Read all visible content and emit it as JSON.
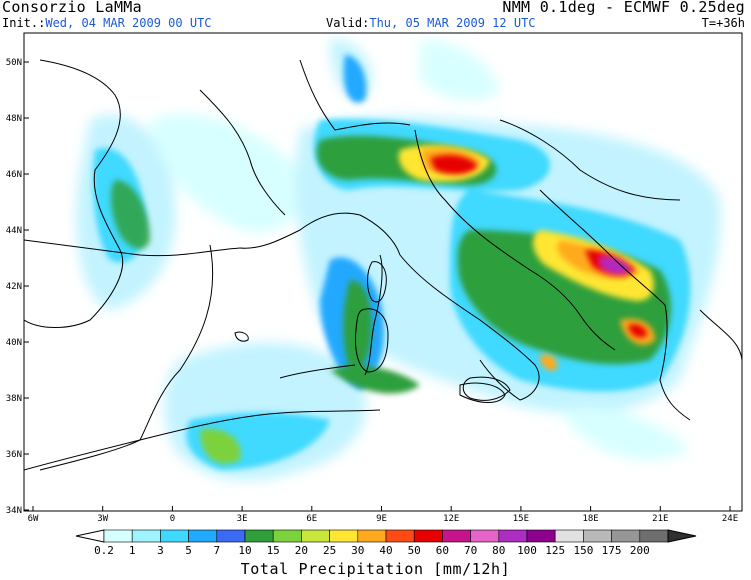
{
  "header": {
    "source": "Consorzio LaMMa",
    "model": "NMM 0.1deg - ECMWF 0.25deg",
    "init_label": "Init.:",
    "init_value": "Wed, 04 MAR 2009   00 UTC",
    "valid_label": "Valid:",
    "valid_value": "Thu, 05 MAR 2009   12 UTC",
    "forecast_step": "T=+36h"
  },
  "map": {
    "lat_labels": [
      "50N",
      "48N",
      "46N",
      "44N",
      "42N",
      "40N",
      "38N",
      "36N",
      "34N"
    ],
    "lon_labels": [
      "6W",
      "3W",
      "0",
      "3E",
      "6E",
      "9E",
      "12E",
      "15E",
      "18E",
      "21E",
      "24E"
    ]
  },
  "colorbar": {
    "title": "Total Precipitation [mm/12h]",
    "ticks": [
      "0.2",
      "1",
      "3",
      "5",
      "7",
      "10",
      "15",
      "20",
      "25",
      "30",
      "40",
      "50",
      "60",
      "70",
      "80",
      "100",
      "125",
      "150",
      "175",
      "200"
    ],
    "colors": [
      "#d6ffff",
      "#9ff5ff",
      "#3fd9ff",
      "#20a9ff",
      "#3b6af5",
      "#2f9f3c",
      "#7bd23c",
      "#c8e63c",
      "#ffe632",
      "#ffaa1e",
      "#ff4a14",
      "#e60000",
      "#c8148c",
      "#e664c8",
      "#ad2cc2",
      "#8c008c",
      "#e1e1e1",
      "#b9b9b9",
      "#969696",
      "#6e6e6e"
    ],
    "extend_low_color": "#ffffff",
    "extend_high_color": "#303030"
  }
}
